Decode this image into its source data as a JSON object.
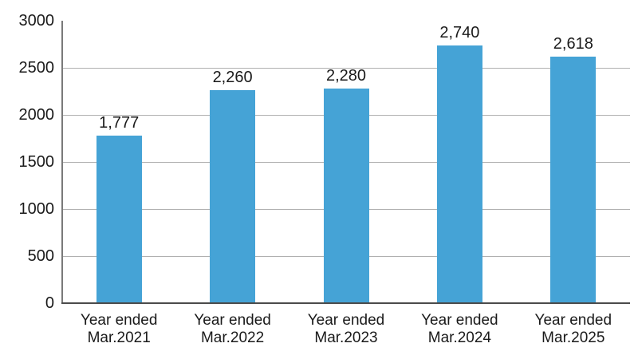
{
  "chart_data": {
    "type": "bar",
    "title": "",
    "xlabel": "",
    "ylabel": "",
    "categories": [
      [
        "Year ended",
        "Mar.2021"
      ],
      [
        "Year ended",
        "Mar.2022"
      ],
      [
        "Year ended",
        "Mar.2023"
      ],
      [
        "Year ended",
        "Mar.2024"
      ],
      [
        "Year ended",
        "Mar.2025"
      ]
    ],
    "values": [
      1777,
      2260,
      2280,
      2740,
      2618
    ],
    "value_labels": [
      "1,777",
      "2,260",
      "2,280",
      "2,740",
      "2,618"
    ],
    "ylim": [
      0,
      3000
    ],
    "yticks": [
      0,
      500,
      1000,
      1500,
      2000,
      2500,
      3000
    ],
    "gridlines_at": [
      500,
      1000,
      1500,
      2000,
      2500
    ],
    "grid": "horizontal",
    "legend": "none",
    "bar_color": "#45a3d6"
  },
  "colors": {
    "bar": "#45a3d6",
    "gridline": "#b0b0b0",
    "axis_left": "#7a7a7a",
    "axis_bottom": "#4b4b4b",
    "text": "#1a1a1a",
    "background": "#ffffff"
  }
}
